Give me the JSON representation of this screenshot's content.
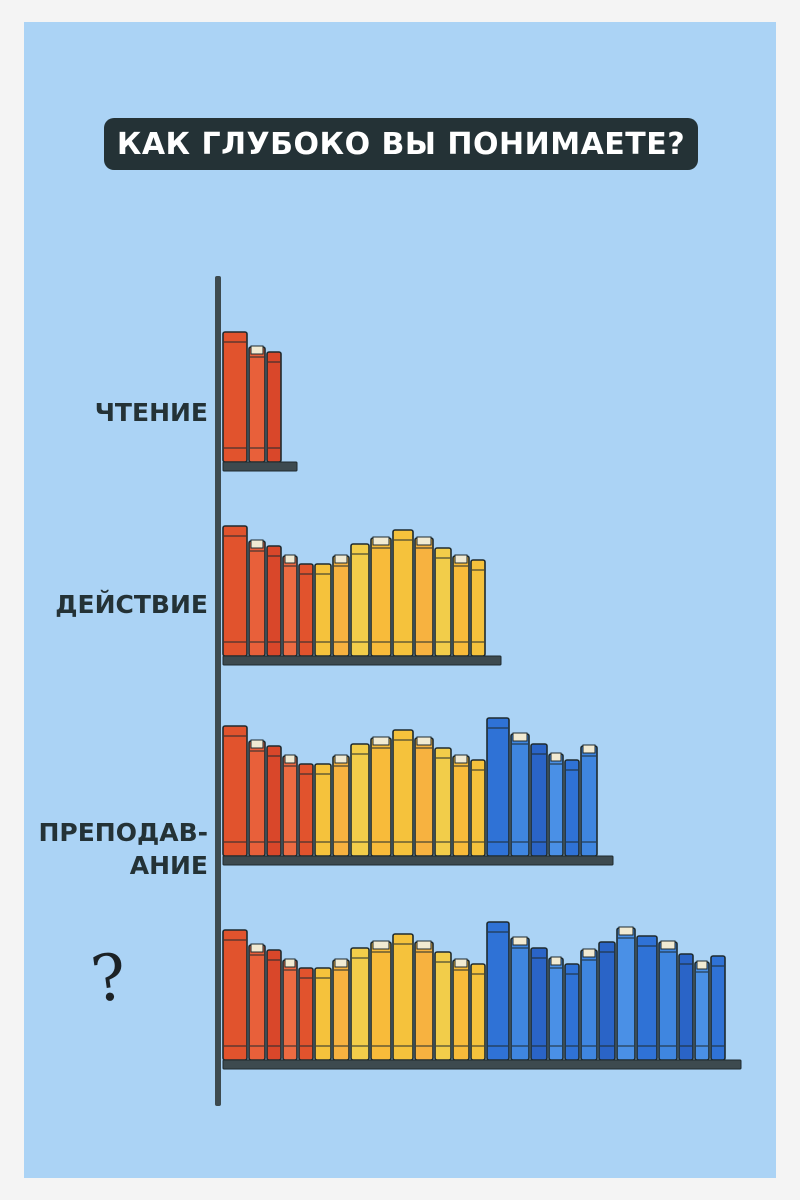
{
  "title": "КАК ГЛУБОКО ВЫ ПОНИМАЕТЕ?",
  "levels": [
    {
      "label": "ЧТЕНИЕ",
      "books": {
        "red": 3,
        "yellow": 0,
        "blue": 0
      }
    },
    {
      "label": "ДЕЙСТВИЕ",
      "books": {
        "red": 5,
        "yellow": 9,
        "blue": 0
      }
    },
    {
      "label_line1": "ПРЕПОДАВ-",
      "label_line2": "АНИЕ",
      "books": {
        "red": 5,
        "yellow": 9,
        "blue": 6
      }
    },
    {
      "label_symbol": "?",
      "books": {
        "red": 5,
        "yellow": 9,
        "blue": 13
      }
    }
  ],
  "colors": {
    "background": "#abd3f5",
    "title_box": "#243236",
    "title_text": "#ffffff",
    "shelf": "#3d4a4f",
    "red_books": [
      "#e1532d",
      "#e8603a",
      "#d9472a",
      "#ec6b42"
    ],
    "yellow_books": [
      "#f5c23c",
      "#f7b240",
      "#f2cd4a",
      "#f8bb3a"
    ],
    "blue_books": [
      "#2f72d6",
      "#3f86e0",
      "#2a64c7",
      "#4a90e6"
    ]
  }
}
